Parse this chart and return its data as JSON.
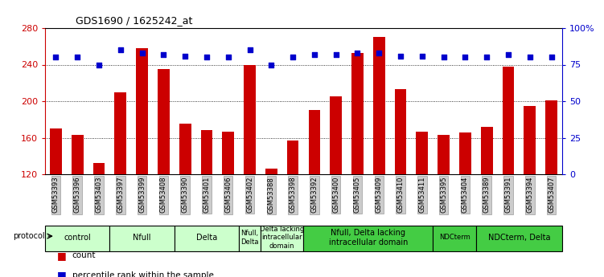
{
  "title": "GDS1690 / 1625242_at",
  "samples": [
    "GSM53393",
    "GSM53396",
    "GSM53403",
    "GSM53397",
    "GSM53399",
    "GSM53408",
    "GSM53390",
    "GSM53401",
    "GSM53406",
    "GSM53402",
    "GSM53388",
    "GSM53398",
    "GSM53392",
    "GSM53400",
    "GSM53405",
    "GSM53409",
    "GSM53410",
    "GSM53411",
    "GSM53395",
    "GSM53404",
    "GSM53389",
    "GSM53391",
    "GSM53394",
    "GSM53407"
  ],
  "counts": [
    170,
    163,
    132,
    210,
    258,
    235,
    175,
    168,
    167,
    240,
    126,
    157,
    190,
    205,
    253,
    270,
    213,
    167,
    163,
    166,
    172,
    238,
    195,
    201
  ],
  "percentiles": [
    80,
    80,
    75,
    85,
    83,
    82,
    81,
    80,
    80,
    85,
    75,
    80,
    82,
    82,
    83,
    83,
    81,
    81,
    80,
    80,
    80,
    82,
    80,
    80
  ],
  "bar_color": "#cc0000",
  "dot_color": "#0000cc",
  "ylim_left": [
    120,
    280
  ],
  "ylim_right": [
    0,
    100
  ],
  "yticks_left": [
    120,
    160,
    200,
    240,
    280
  ],
  "yticks_right": [
    0,
    25,
    50,
    75,
    100
  ],
  "ytick_labels_right": [
    "0",
    "25",
    "50",
    "75",
    "100%"
  ],
  "gridline_y": [
    160,
    200,
    240
  ],
  "groups": [
    {
      "label": "control",
      "start": 0,
      "end": 3,
      "color": "#ccffcc"
    },
    {
      "label": "Nfull",
      "start": 3,
      "end": 6,
      "color": "#ccffcc"
    },
    {
      "label": "Delta",
      "start": 6,
      "end": 9,
      "color": "#ccffcc"
    },
    {
      "label": "Nfull,\nDelta",
      "start": 9,
      "end": 10,
      "color": "#ccffcc"
    },
    {
      "label": "Delta lacking\nintracellular\ndomain",
      "start": 10,
      "end": 12,
      "color": "#ccffcc"
    },
    {
      "label": "Nfull, Delta lacking\nintracellular domain",
      "start": 12,
      "end": 18,
      "color": "#44cc44"
    },
    {
      "label": "NDCterm",
      "start": 18,
      "end": 20,
      "color": "#44cc44"
    },
    {
      "label": "NDCterm, Delta",
      "start": 20,
      "end": 24,
      "color": "#44cc44"
    }
  ],
  "bg_color": "#ffffff",
  "tick_bg_color": "#cccccc"
}
